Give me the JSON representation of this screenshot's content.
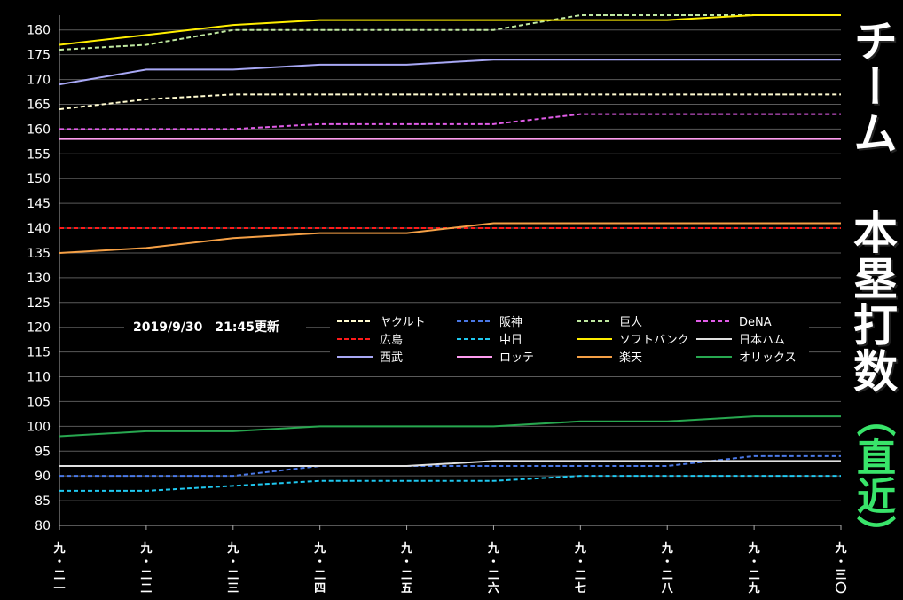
{
  "chart_data": {
    "type": "line",
    "title": "チーム 本塁打数",
    "subtitle": "（直近）",
    "timestamp": "2019/9/30　21:45更新",
    "ylim": [
      80,
      183
    ],
    "yticks": [
      80,
      85,
      90,
      95,
      100,
      105,
      110,
      115,
      120,
      125,
      130,
      135,
      140,
      145,
      150,
      155,
      160,
      165,
      170,
      175,
      180
    ],
    "grid": true,
    "legend_position": "center",
    "x": [
      "九・二一",
      "九・二二",
      "九・二三",
      "九・二四",
      "九・二五",
      "九・二六",
      "九・二七",
      "九・二八",
      "九・二九",
      "九・三〇"
    ],
    "series": [
      {
        "name": "ヤクルト",
        "color": "#fffbd0",
        "dashed": true,
        "values": [
          164,
          166,
          167,
          167,
          167,
          167,
          167,
          167,
          167,
          167
        ]
      },
      {
        "name": "阪神",
        "color": "#4a78e6",
        "dashed": true,
        "values": [
          90,
          90,
          90,
          92,
          92,
          92,
          92,
          92,
          94,
          94
        ]
      },
      {
        "name": "巨人",
        "color": "#bfe8a0",
        "dashed": true,
        "values": [
          176,
          177,
          180,
          180,
          180,
          180,
          183,
          183,
          183,
          183
        ]
      },
      {
        "name": "DeNA",
        "color": "#e15ce8",
        "dashed": true,
        "values": [
          160,
          160,
          160,
          161,
          161,
          161,
          163,
          163,
          163,
          163
        ]
      },
      {
        "name": "広島",
        "color": "#ff1a1a",
        "dashed": true,
        "values": [
          140,
          140,
          140,
          140,
          140,
          140,
          140,
          140,
          140,
          140
        ]
      },
      {
        "name": "中日",
        "color": "#1fc8f0",
        "dashed": true,
        "values": [
          87,
          87,
          88,
          89,
          89,
          89,
          90,
          90,
          90,
          90
        ]
      },
      {
        "name": "ソフトバンク",
        "color": "#ffee00",
        "dashed": false,
        "values": [
          177,
          179,
          181,
          182,
          182,
          182,
          182,
          182,
          183,
          183
        ]
      },
      {
        "name": "日本ハム",
        "color": "#e0e0e0",
        "dashed": false,
        "values": [
          92,
          92,
          92,
          92,
          92,
          93,
          93,
          93,
          93,
          93
        ]
      },
      {
        "name": "西武",
        "color": "#a8a8f5",
        "dashed": false,
        "values": [
          169,
          172,
          172,
          173,
          173,
          174,
          174,
          174,
          174,
          174
        ]
      },
      {
        "name": "ロッテ",
        "color": "#ff9cf0",
        "dashed": false,
        "values": [
          158,
          158,
          158,
          158,
          158,
          158,
          158,
          158,
          158,
          158
        ]
      },
      {
        "name": "楽天",
        "color": "#f5a046",
        "dashed": false,
        "values": [
          135,
          136,
          138,
          139,
          139,
          141,
          141,
          141,
          141,
          141
        ]
      },
      {
        "name": "オリックス",
        "color": "#28a850",
        "dashed": false,
        "values": [
          98,
          99,
          99,
          100,
          100,
          100,
          101,
          101,
          102,
          102
        ]
      }
    ]
  }
}
